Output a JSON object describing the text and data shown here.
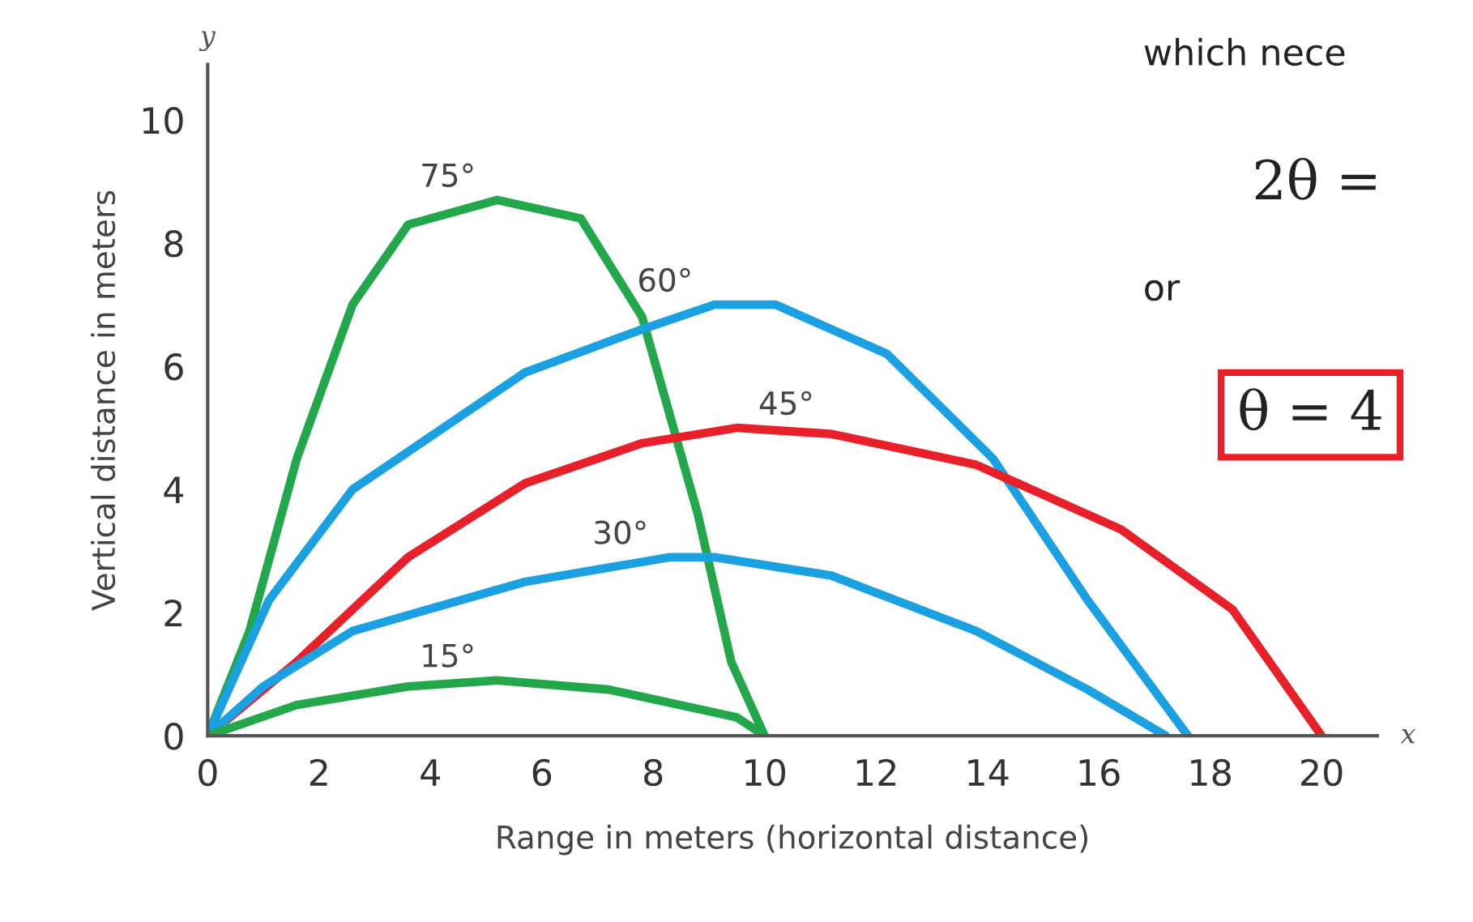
{
  "chart_data": {
    "type": "line",
    "xlabel": "Range in meters (horizontal distance)",
    "ylabel": "Vertical distance in meters",
    "xlim": [
      0,
      21
    ],
    "ylim": [
      0,
      10.9
    ],
    "xticks": [
      0,
      2,
      4,
      6,
      8,
      10,
      12,
      14,
      16,
      18,
      20
    ],
    "yticks": [
      0,
      2,
      4,
      6,
      8,
      10
    ],
    "grid": false,
    "legend": false,
    "marker": "none",
    "line_style": "solid",
    "series": [
      {
        "name": "75°",
        "color": "#22a84a",
        "x": [
          0,
          0.75,
          1.6,
          2.6,
          3.6,
          5.2,
          6.7,
          7.8,
          8.8,
          9.4,
          10
        ],
        "values": [
          0,
          1.7,
          4.5,
          7.0,
          8.3,
          8.7,
          8.4,
          6.8,
          3.6,
          1.2,
          0
        ]
      },
      {
        "name": "60°",
        "color": "#1ba1e2",
        "x": [
          0,
          1.1,
          2.6,
          5.7,
          7.8,
          9.1,
          10.2,
          12.2,
          14.1,
          15.8,
          17.6
        ],
        "values": [
          0,
          2.2,
          4.0,
          5.9,
          6.6,
          7.0,
          7.0,
          6.2,
          4.5,
          2.2,
          0
        ]
      },
      {
        "name": "45°",
        "color": "#e8202a",
        "x": [
          0,
          1.6,
          3.6,
          5.7,
          7.8,
          9.5,
          11.2,
          13.8,
          16.4,
          18.4,
          20
        ],
        "values": [
          0,
          1.2,
          2.9,
          4.1,
          4.75,
          5.0,
          4.9,
          4.4,
          3.35,
          2.05,
          0
        ]
      },
      {
        "name": "30°",
        "color": "#1ba1e2",
        "x": [
          0,
          1.0,
          2.6,
          5.7,
          8.3,
          9.1,
          11.2,
          13.8,
          15.8,
          17.2
        ],
        "values": [
          0,
          0.8,
          1.7,
          2.5,
          2.9,
          2.9,
          2.6,
          1.7,
          0.75,
          0
        ]
      },
      {
        "name": "15°",
        "color": "#22a84a",
        "x": [
          0,
          1.6,
          3.6,
          5.2,
          7.2,
          9.5,
          10
        ],
        "values": [
          0,
          0.5,
          0.8,
          0.9,
          0.75,
          0.3,
          0
        ]
      }
    ],
    "annotations": [
      "y",
      "x",
      "which nece",
      "2θ =",
      "or",
      "θ = 4"
    ]
  }
}
